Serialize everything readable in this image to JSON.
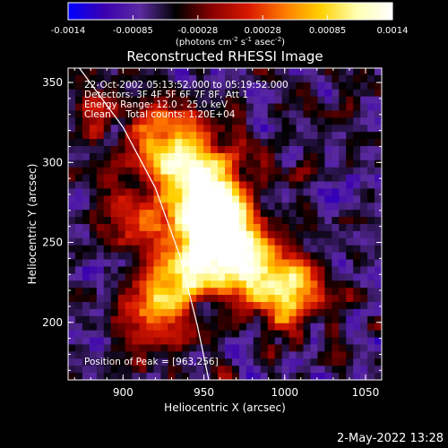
{
  "chart_data": {
    "type": "heatmap",
    "title": "Reconstructed RHESSI Image",
    "xlabel": "Heliocentric X (arcsec)",
    "ylabel": "Heliocentric Y (arcsec)",
    "xlim": [
      866,
      1060
    ],
    "ylim": [
      164,
      359
    ],
    "xticks": [
      900,
      950,
      1000,
      1050
    ],
    "yticks": [
      200,
      250,
      300,
      350
    ],
    "colorbar": {
      "range": [
        -0.0014,
        0.0014
      ],
      "ticks": [
        "-0.0014",
        "-0.00085",
        "-0.00028",
        "0.00028",
        "0.00085",
        "0.0014"
      ],
      "unit_parts": [
        "(photons cm",
        "-2",
        " s",
        "-1",
        " asec",
        "-2",
        ")"
      ],
      "colors": [
        "#0000ff",
        "#3a00b0",
        "#5a2aa0",
        "#000000",
        "#8a0000",
        "#d81800",
        "#ff7a00",
        "#ffd000",
        "#ffffb0",
        "#ffffff"
      ]
    },
    "annotations": [
      "22-Oct-2002 05:13:52.000 to 05:19:52.000",
      "Detectors: 3F 4F 5F 6F 7F 8F, Att 1",
      "Energy Range: 12.0 - 25.0 keV",
      "Clean     Total counts: 1.20E+04"
    ],
    "peak_label": "Position of Peak = [963,256]",
    "peak": [
      963,
      256
    ],
    "limb": [
      [
        873,
        359
      ],
      [
        900,
        322
      ],
      [
        920,
        284
      ],
      [
        935,
        242
      ],
      [
        946,
        198
      ],
      [
        953,
        164
      ]
    ],
    "sources": [
      {
        "x": 962,
        "y": 256,
        "sx": 14,
        "sy": 20,
        "amp": 1.0
      },
      {
        "x": 945,
        "y": 282,
        "sx": 16,
        "sy": 22,
        "amp": 0.78
      },
      {
        "x": 925,
        "y": 312,
        "sx": 18,
        "sy": 16,
        "amp": 0.55
      },
      {
        "x": 985,
        "y": 232,
        "sx": 18,
        "sy": 16,
        "amp": 0.6
      },
      {
        "x": 1005,
        "y": 214,
        "sx": 14,
        "sy": 14,
        "amp": 0.45
      },
      {
        "x": 935,
        "y": 230,
        "sx": 15,
        "sy": 16,
        "amp": 0.55
      },
      {
        "x": 918,
        "y": 205,
        "sx": 14,
        "sy": 16,
        "amp": 0.42
      },
      {
        "x": 902,
        "y": 265,
        "sx": 12,
        "sy": 14,
        "amp": 0.4
      },
      {
        "x": 880,
        "y": 330,
        "sx": 10,
        "sy": 10,
        "amp": 0.3
      }
    ],
    "background": -0.45
  },
  "footer_date": "2-May-2022 13:28"
}
